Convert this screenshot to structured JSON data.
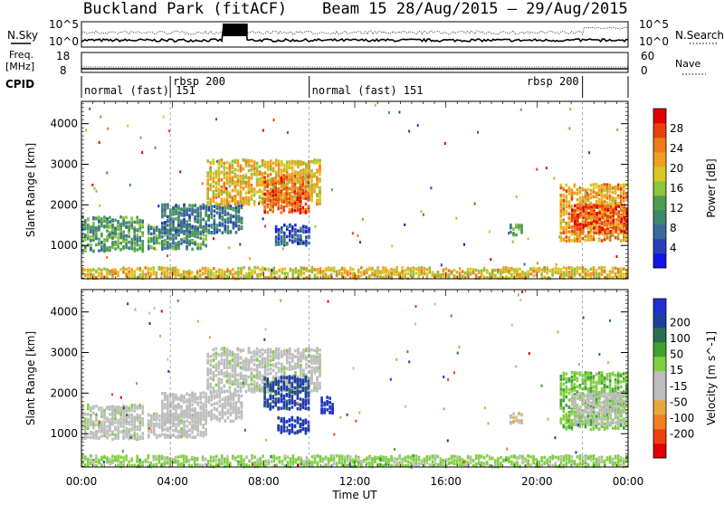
{
  "header": {
    "station": "Buckland Park (fitACF)",
    "beam_dates": "Beam 15 28/Aug/2015 – 29/Aug/2015"
  },
  "nsky_panel": {
    "left_label": "N.Sky",
    "right_label": "N.Search",
    "top_tick": "10^5",
    "bottom_tick": "10^0",
    "right_top_tick": "10^5",
    "right_bottom_tick": "10^0"
  },
  "freq_panel": {
    "left_label_1": "Freq.",
    "left_label_2": "[MHz]",
    "left_top_tick": "18",
    "left_bottom_tick": "8",
    "right_label": "Nave",
    "right_top_tick": "60",
    "right_bottom_tick": "0"
  },
  "cpid": {
    "label": "CPID",
    "segments": [
      {
        "label": "normal (fast) 151",
        "start_h": 0,
        "end_h": 3.9
      },
      {
        "label": "rbsp 200",
        "start_h": 3.9,
        "end_h": 10.0
      },
      {
        "label": "normal (fast) 151",
        "start_h": 10.0,
        "end_h": 22.0
      },
      {
        "label": "rbsp 200",
        "start_h": 22.0,
        "end_h": 24
      }
    ]
  },
  "colors": {
    "power": [
      "#1414e6",
      "#2a3fb8",
      "#3c6a9a",
      "#3d8a6a",
      "#4e9e50",
      "#8cc43c",
      "#d8c820",
      "#f0a020",
      "#f07818",
      "#e84010",
      "#e00000"
    ],
    "velocity": [
      "#e00000",
      "#f04010",
      "#f08020",
      "#e8a840",
      "#bebebe",
      "#bebebe",
      "#80d040",
      "#40a030",
      "#2a7050",
      "#2040a0",
      "#2030d0"
    ]
  },
  "chart_data": [
    {
      "type": "heatmap",
      "title": "",
      "xlabel": "",
      "ylabel": "Slant Range [km]",
      "xlim": [
        0,
        24
      ],
      "ylim": [
        180,
        4550
      ],
      "x_ticks": [
        "00:00",
        "04:00",
        "08:00",
        "12:00",
        "16:00",
        "20:00",
        "00:00"
      ],
      "y_ticks": [
        "1000",
        "2000",
        "3000",
        "4000"
      ],
      "colorbar_label": "Power [dB]",
      "colorbar_ticks": [
        "4",
        "8",
        "12",
        "16",
        "20",
        "24",
        "28"
      ],
      "colorbar_range": [
        0,
        32
      ],
      "regions": [
        {
          "x": [
            0.0,
            2.7
          ],
          "y": [
            850,
            1700
          ],
          "v": 12
        },
        {
          "x": [
            2.9,
            5.5
          ],
          "y": [
            900,
            1500
          ],
          "v": 11
        },
        {
          "x": [
            3.5,
            7.0
          ],
          "y": [
            1300,
            2000
          ],
          "v": 9
        },
        {
          "x": [
            5.5,
            10.5
          ],
          "y": [
            2000,
            3100
          ],
          "v": 20
        },
        {
          "x": [
            8.0,
            10.0
          ],
          "y": [
            1800,
            2700
          ],
          "v": 26
        },
        {
          "x": [
            8.5,
            10.0
          ],
          "y": [
            1000,
            1500
          ],
          "v": 6
        },
        {
          "x": [
            18.8,
            19.4
          ],
          "y": [
            1250,
            1500
          ],
          "v": 12
        },
        {
          "x": [
            21.0,
            24.0
          ],
          "y": [
            1100,
            2500
          ],
          "v": 22
        },
        {
          "x": [
            21.5,
            24.0
          ],
          "y": [
            1300,
            2000
          ],
          "v": 27
        },
        {
          "x": [
            0.0,
            24.0
          ],
          "y": [
            180,
            450
          ],
          "v": 20
        }
      ]
    },
    {
      "type": "heatmap",
      "title": "",
      "xlabel": "Time UT",
      "ylabel": "Slant Range [km]",
      "xlim": [
        0,
        24
      ],
      "ylim": [
        180,
        4550
      ],
      "x_ticks": [
        "00:00",
        "04:00",
        "08:00",
        "12:00",
        "16:00",
        "20:00",
        "00:00"
      ],
      "y_ticks": [
        "1000",
        "2000",
        "3000",
        "4000"
      ],
      "colorbar_label": "Velocity [m s^-1]",
      "colorbar_ticks": [
        "-200",
        "-100",
        "-50",
        "-15",
        "15",
        "50",
        "100",
        "200"
      ],
      "colorbar_range": [
        -250,
        250
      ],
      "regions": [
        {
          "x": [
            0.0,
            2.7
          ],
          "y": [
            850,
            1700
          ],
          "v": 0
        },
        {
          "x": [
            2.9,
            5.5
          ],
          "y": [
            900,
            1500
          ],
          "v": 0
        },
        {
          "x": [
            3.5,
            7.0
          ],
          "y": [
            1300,
            2000
          ],
          "v": -20
        },
        {
          "x": [
            5.5,
            10.5
          ],
          "y": [
            2000,
            3100
          ],
          "v": 0
        },
        {
          "x": [
            8.0,
            10.0
          ],
          "y": [
            1600,
            2400
          ],
          "v": 180
        },
        {
          "x": [
            8.6,
            10.0
          ],
          "y": [
            1000,
            1400
          ],
          "v": 200
        },
        {
          "x": [
            10.5,
            11.0
          ],
          "y": [
            1500,
            1900
          ],
          "v": 220
        },
        {
          "x": [
            18.8,
            19.4
          ],
          "y": [
            1250,
            1500
          ],
          "v": -60
        },
        {
          "x": [
            21.0,
            24.0
          ],
          "y": [
            1100,
            2500
          ],
          "v": 60
        },
        {
          "x": [
            21.5,
            24.0
          ],
          "y": [
            1200,
            2000
          ],
          "v": 0
        },
        {
          "x": [
            0.0,
            24.0
          ],
          "y": [
            180,
            450
          ],
          "v": 40
        }
      ]
    }
  ]
}
